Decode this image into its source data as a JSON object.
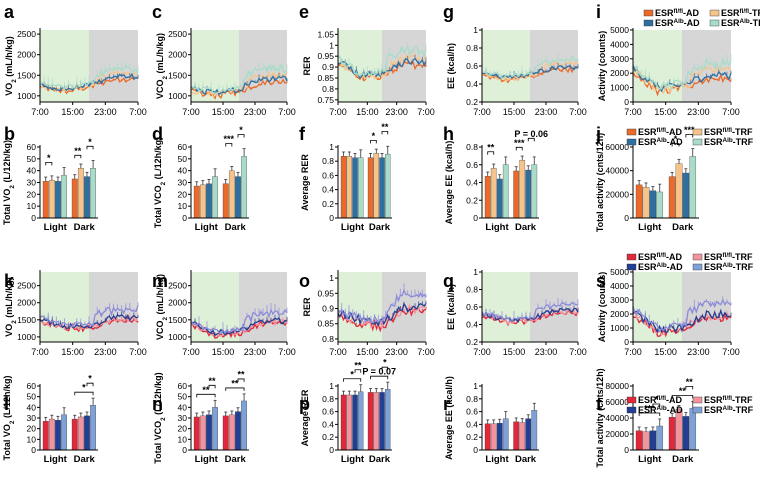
{
  "figure": {
    "series_top": [
      {
        "name": "ESR^{fl/fl}-AD",
        "color": "#ea6a2b"
      },
      {
        "name": "ESR^{fl/fl}-TRF",
        "color": "#f6c48a"
      },
      {
        "name": "ESR^{Alb}-AD",
        "color": "#2f6fa0"
      },
      {
        "name": "ESR^{Alb}-TRF",
        "color": "#a8dcc8"
      }
    ],
    "series_bottom": [
      {
        "name": "ESR^{fl/fl}-AD",
        "color": "#e0283a"
      },
      {
        "name": "ESR^{fl/fl}-TRF",
        "color": "#f2949e"
      },
      {
        "name": "ESR^{Alb}-AD",
        "color": "#233f93"
      },
      {
        "name": "ESR^{Alb}-TRF",
        "color": "#7fa2d6"
      }
    ],
    "line_bottom_colors": [
      "#e0283a",
      "#f2949e",
      "#233f93",
      "#8c8ad8"
    ],
    "light_phase_color": "#dff0d8",
    "dark_phase_color": "#d6d6d6",
    "time_ticks": [
      "7:00",
      "15:00",
      "23:00",
      "7:00"
    ],
    "group_labels": [
      "Light",
      "Dark"
    ]
  },
  "chart_data": [
    {
      "panel": "a",
      "type": "line",
      "ylabel": "VO2 (mL/h/kg)",
      "ylim": [
        850,
        2600
      ],
      "yticks": [
        1000,
        1500,
        2000,
        2500
      ],
      "set": "top",
      "base": [
        1250,
        1150,
        1250,
        1450
      ],
      "amp": 120
    },
    {
      "panel": "c",
      "type": "line",
      "ylabel": "VCO2 (mL/h/kg)",
      "ylim": [
        850,
        2600
      ],
      "yticks": [
        1000,
        1500,
        2000,
        2500
      ],
      "set": "top",
      "base": [
        1150,
        1050,
        1150,
        1400
      ],
      "amp": 140
    },
    {
      "panel": "e",
      "type": "line",
      "ylabel": "RER",
      "ylim": [
        0.74,
        1.07
      ],
      "yticks": [
        0.75,
        0.8,
        0.85,
        0.9,
        0.95,
        1.0,
        1.05
      ],
      "set": "top",
      "base": [
        0.93,
        0.86,
        0.87,
        0.92
      ],
      "amp": 0.03
    },
    {
      "panel": "g",
      "type": "line",
      "ylabel": "EE (kcal/h)",
      "ylim": [
        0.2,
        1.0
      ],
      "yticks": [
        0.2,
        0.4,
        0.6,
        0.8,
        1.0
      ],
      "set": "top",
      "base": [
        0.52,
        0.46,
        0.5,
        0.58
      ],
      "amp": 0.05
    },
    {
      "panel": "i",
      "type": "line",
      "ylabel": "Activity (counts)",
      "ylim": [
        0,
        5000
      ],
      "yticks": [
        0,
        1000,
        2000,
        3000,
        4000,
        5000
      ],
      "set": "top",
      "base": [
        2300,
        900,
        1100,
        1800
      ],
      "amp": 500,
      "legend": true
    },
    {
      "panel": "b",
      "type": "bar",
      "ylabel": "Total VO2 (L/12h/kg)",
      "ylim": [
        0,
        60
      ],
      "yticks": [
        0,
        10,
        20,
        30,
        40,
        50,
        60
      ],
      "set": "top",
      "categories": [
        "Light",
        "Dark"
      ],
      "series": [
        {
          "values": [
            31,
            33
          ]
        },
        {
          "values": [
            32,
            42
          ]
        },
        {
          "values": [
            31,
            35
          ]
        },
        {
          "values": [
            36,
            42
          ]
        }
      ],
      "sig": [
        {
          "g": 0,
          "a": 0,
          "b": 1,
          "label": "*"
        },
        {
          "g": 1,
          "a": 0,
          "b": 1,
          "label": "**"
        },
        {
          "g": 1,
          "a": 2,
          "b": 3,
          "label": "*"
        }
      ]
    },
    {
      "panel": "d",
      "type": "bar",
      "ylabel": "Total VCO2 (L/12h/kg)",
      "ylim": [
        0,
        60
      ],
      "yticks": [
        0,
        10,
        20,
        30,
        40,
        50,
        60
      ],
      "set": "top",
      "categories": [
        "Light",
        "Dark"
      ],
      "series": [
        {
          "values": [
            27,
            29
          ]
        },
        {
          "values": [
            28,
            40
          ]
        },
        {
          "values": [
            29,
            35
          ]
        },
        {
          "values": [
            35,
            52
          ]
        }
      ],
      "sig": [
        {
          "g": 1,
          "a": 0,
          "b": 1,
          "label": "***"
        },
        {
          "g": 1,
          "a": 2,
          "b": 3,
          "label": "*"
        }
      ]
    },
    {
      "panel": "f",
      "type": "bar",
      "ylabel": "Average RER",
      "ylim": [
        0,
        1.0
      ],
      "yticks": [
        0,
        0.2,
        0.4,
        0.6,
        0.8,
        1.0
      ],
      "set": "top",
      "categories": [
        "Light",
        "Dark"
      ],
      "series": [
        {
          "values": [
            0.87,
            0.85
          ]
        },
        {
          "values": [
            0.87,
            0.91
          ]
        },
        {
          "values": [
            0.85,
            0.85
          ]
        },
        {
          "values": [
            0.85,
            0.9
          ]
        }
      ],
      "sig": [
        {
          "g": 1,
          "a": 0,
          "b": 1,
          "label": "*"
        },
        {
          "g": 1,
          "a": 2,
          "b": 3,
          "label": "**"
        }
      ]
    },
    {
      "panel": "h",
      "type": "bar",
      "ylabel": "Average EE (kcal/h)",
      "ylim": [
        0,
        0.8
      ],
      "yticks": [
        0,
        0.2,
        0.4,
        0.6,
        0.8
      ],
      "set": "top",
      "categories": [
        "Light",
        "Dark"
      ],
      "series": [
        {
          "values": [
            0.47,
            0.53
          ]
        },
        {
          "values": [
            0.56,
            0.65
          ]
        },
        {
          "values": [
            0.44,
            0.54
          ]
        },
        {
          "values": [
            0.6,
            0.6
          ]
        }
      ],
      "sig": [
        {
          "g": 0,
          "a": 0,
          "b": 1,
          "label": "**"
        },
        {
          "g": 1,
          "a": 0,
          "b": 1,
          "label": "***"
        },
        {
          "g": 1,
          "a": 2,
          "b": 3,
          "label": "P = 0.06"
        }
      ]
    },
    {
      "panel": "j",
      "type": "bar",
      "ylabel": "Total activity (cnts/12h)",
      "ylim": [
        0,
        60000
      ],
      "yticks": [
        0,
        20000,
        40000,
        60000
      ],
      "set": "top",
      "categories": [
        "Light",
        "Dark"
      ],
      "series": [
        {
          "values": [
            28000,
            35000
          ]
        },
        {
          "values": [
            26000,
            46000
          ]
        },
        {
          "values": [
            23000,
            38000
          ]
        },
        {
          "values": [
            22000,
            52000
          ]
        }
      ],
      "sig": [
        {
          "g": 1,
          "a": 0,
          "b": 1,
          "label": "*"
        },
        {
          "g": 1,
          "a": 2,
          "b": 3,
          "label": "***"
        }
      ],
      "legend": true
    },
    {
      "panel": "k",
      "type": "line",
      "ylabel": "VO2 (mL/h/kg)",
      "ylim": [
        850,
        2900
      ],
      "yticks": [
        1000,
        1500,
        2000,
        2500
      ],
      "set": "bottom",
      "base": [
        1500,
        1300,
        1300,
        1550
      ],
      "amp": 150
    },
    {
      "panel": "m",
      "type": "line",
      "ylabel": "VCO2 (mL/h/kg)",
      "ylim": [
        850,
        2900
      ],
      "yticks": [
        1000,
        1500,
        2000,
        2500
      ],
      "set": "bottom",
      "base": [
        1400,
        1100,
        1150,
        1450
      ],
      "amp": 150
    },
    {
      "panel": "o",
      "type": "line",
      "ylabel": "RER",
      "ylim": [
        0.79,
        1.02
      ],
      "yticks": [
        0.8,
        0.85,
        0.9,
        0.95,
        1.0
      ],
      "set": "bottom",
      "base": [
        0.88,
        0.86,
        0.85,
        0.9
      ],
      "amp": 0.025
    },
    {
      "panel": "q",
      "type": "line",
      "ylabel": "EE (kcal/h)",
      "ylim": [
        0.2,
        1.0
      ],
      "yticks": [
        0.2,
        0.4,
        0.6,
        0.8,
        1.0
      ],
      "set": "bottom",
      "base": [
        0.52,
        0.44,
        0.45,
        0.55
      ],
      "amp": 0.05
    },
    {
      "panel": "s",
      "type": "line",
      "ylabel": "Activity (counts)",
      "ylim": [
        0,
        5000
      ],
      "yticks": [
        0,
        1000,
        2000,
        3000,
        4000,
        5000
      ],
      "set": "bottom",
      "base": [
        2200,
        800,
        1000,
        1900
      ],
      "amp": 500,
      "legend": true
    },
    {
      "panel": "l",
      "type": "bar",
      "ylabel": "Total VO2 (L/12h/kg)",
      "ylim": [
        0,
        60
      ],
      "yticks": [
        0,
        10,
        20,
        30,
        40,
        50,
        60
      ],
      "set": "bottom",
      "categories": [
        "Light",
        "Dark"
      ],
      "series": [
        {
          "values": [
            27,
            29
          ]
        },
        {
          "values": [
            29,
            31
          ]
        },
        {
          "values": [
            28,
            32
          ]
        },
        {
          "values": [
            33,
            42
          ]
        }
      ],
      "sig": [
        {
          "g": 1,
          "a": 0,
          "b": 3,
          "label": "*"
        },
        {
          "g": 1,
          "a": 2,
          "b": 3,
          "label": "*"
        }
      ]
    },
    {
      "panel": "n",
      "type": "bar",
      "ylabel": "Total VCO2 (L/12h/kg)",
      "ylim": [
        0,
        60
      ],
      "yticks": [
        0,
        10,
        20,
        30,
        40,
        50,
        60
      ],
      "set": "bottom",
      "categories": [
        "Light",
        "Dark"
      ],
      "series": [
        {
          "values": [
            31,
            32
          ]
        },
        {
          "values": [
            32,
            33
          ]
        },
        {
          "values": [
            33,
            36
          ]
        },
        {
          "values": [
            40,
            46
          ]
        }
      ],
      "sig": [
        {
          "g": 0,
          "a": 0,
          "b": 3,
          "label": "**"
        },
        {
          "g": 0,
          "a": 2,
          "b": 3,
          "label": "**"
        },
        {
          "g": 1,
          "a": 0,
          "b": 3,
          "label": "**"
        },
        {
          "g": 1,
          "a": 2,
          "b": 3,
          "label": "**"
        }
      ]
    },
    {
      "panel": "p",
      "type": "bar",
      "ylabel": "Average RER",
      "ylim": [
        0,
        1.0
      ],
      "yticks": [
        0,
        0.2,
        0.4,
        0.6,
        0.8,
        1.0
      ],
      "set": "bottom",
      "categories": [
        "Light",
        "Dark"
      ],
      "series": [
        {
          "values": [
            0.86,
            0.9
          ]
        },
        {
          "values": [
            0.86,
            0.9
          ]
        },
        {
          "values": [
            0.86,
            0.9
          ]
        },
        {
          "values": [
            0.91,
            0.95
          ]
        }
      ],
      "sig": [
        {
          "g": 0,
          "a": 0,
          "b": 3,
          "label": "*"
        },
        {
          "g": 0,
          "a": 2,
          "b": 3,
          "label": "**"
        },
        {
          "g": 1,
          "a": 0,
          "b": 3,
          "label": "P = 0.07"
        },
        {
          "g": 1,
          "a": 2,
          "b": 3,
          "label": "*"
        }
      ]
    },
    {
      "panel": "r",
      "type": "bar",
      "ylabel": "Average EE (kcal/h)",
      "ylim": [
        0,
        1.0
      ],
      "yticks": [
        0,
        0.2,
        0.4,
        0.6,
        0.8,
        1.0
      ],
      "set": "bottom",
      "categories": [
        "Light",
        "Dark"
      ],
      "series": [
        {
          "values": [
            0.41,
            0.44
          ]
        },
        {
          "values": [
            0.41,
            0.43
          ]
        },
        {
          "values": [
            0.42,
            0.49
          ]
        },
        {
          "values": [
            0.49,
            0.62
          ]
        }
      ],
      "sig": []
    },
    {
      "panel": "t",
      "type": "bar",
      "ylabel": "Total activity (cnts/12h)",
      "ylim": [
        0,
        80000
      ],
      "yticks": [
        0,
        20000,
        40000,
        60000,
        80000
      ],
      "set": "bottom",
      "categories": [
        "Light",
        "Dark"
      ],
      "series": [
        {
          "values": [
            24000,
            41000
          ]
        },
        {
          "values": [
            23000,
            51000
          ]
        },
        {
          "values": [
            24000,
            42000
          ]
        },
        {
          "values": [
            30000,
            52000
          ]
        }
      ],
      "sig": [
        {
          "g": 0,
          "a": 0,
          "b": 3,
          "label": "***"
        },
        {
          "g": 0,
          "a": 2,
          "b": 3,
          "label": "*"
        },
        {
          "g": 1,
          "a": 0,
          "b": 3,
          "label": "**"
        },
        {
          "g": 1,
          "a": 2,
          "b": 3,
          "label": "**"
        }
      ],
      "legend": true
    }
  ]
}
